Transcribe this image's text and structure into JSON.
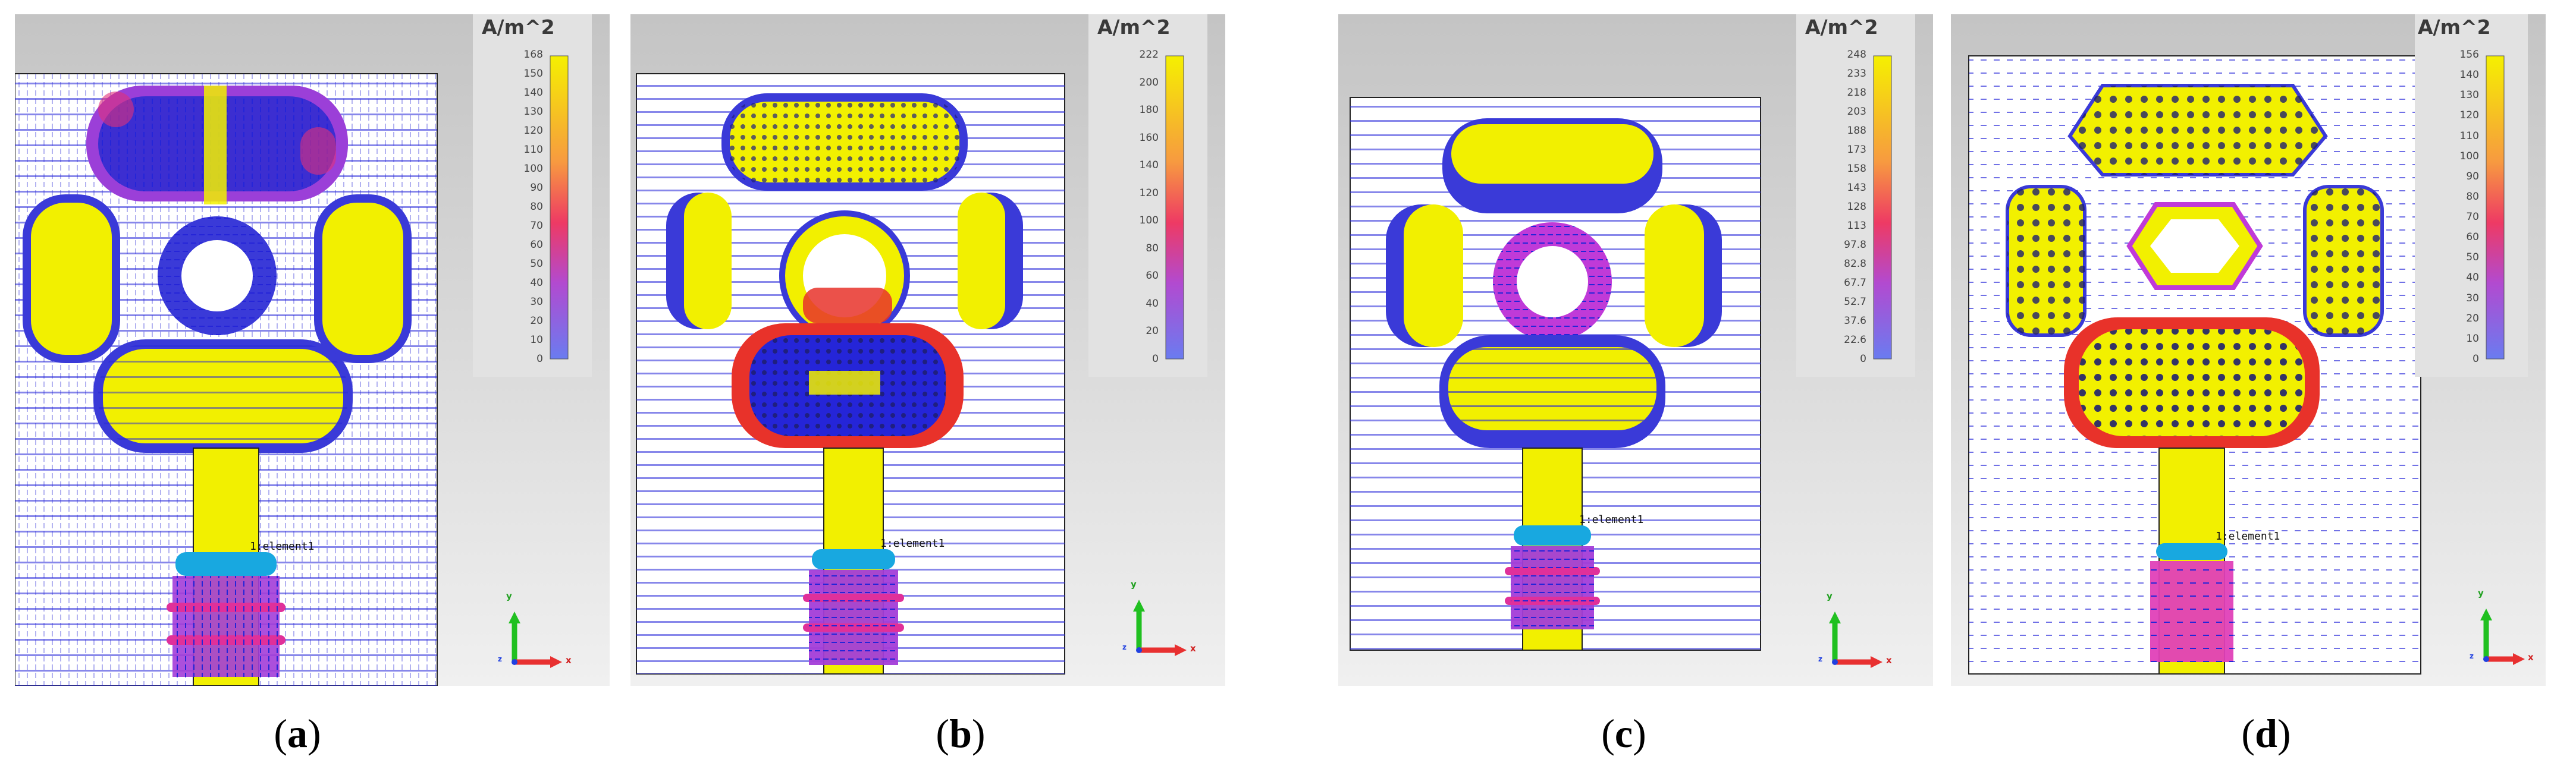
{
  "unit": "A/m^2",
  "panels": [
    {
      "id": "a",
      "caption_letter": "a",
      "port_label": "1:element1",
      "colorbar_ticks": [
        "168",
        "150",
        "140",
        "130",
        "120",
        "110",
        "100",
        "90",
        "80",
        "70",
        "60",
        "50",
        "40",
        "30",
        "20",
        "10",
        "0"
      ]
    },
    {
      "id": "b",
      "caption_letter": "b",
      "port_label": "1:element1",
      "colorbar_ticks": [
        "222",
        "200",
        "180",
        "160",
        "140",
        "120",
        "100",
        "80",
        "60",
        "40",
        "20",
        "0"
      ]
    },
    {
      "id": "c",
      "caption_letter": "c",
      "port_label": "1:element1",
      "colorbar_ticks": [
        "248",
        "233",
        "218",
        "203",
        "188",
        "173",
        "158",
        "143",
        "128",
        "113",
        "97.8",
        "82.8",
        "67.7",
        "52.7",
        "37.6",
        "22.6",
        "0"
      ]
    },
    {
      "id": "d",
      "caption_letter": "d",
      "port_label": "1:element1",
      "colorbar_ticks": [
        "156",
        "140",
        "130",
        "120",
        "110",
        "100",
        "90",
        "80",
        "70",
        "60",
        "50",
        "40",
        "30",
        "20",
        "10",
        "0"
      ]
    }
  ],
  "axis_labels": {
    "y": "y",
    "x": "x",
    "z": "z"
  },
  "caption_open": "(",
  "caption_close": ")",
  "colors": {
    "background_top": "#c4c4c4",
    "background_bottom": "#f0f0f0",
    "vector": "#2525d8",
    "yellow": "#f2f000",
    "magenta": "#c030c0",
    "red": "#e8322a",
    "cyan": "#18a8e0"
  }
}
